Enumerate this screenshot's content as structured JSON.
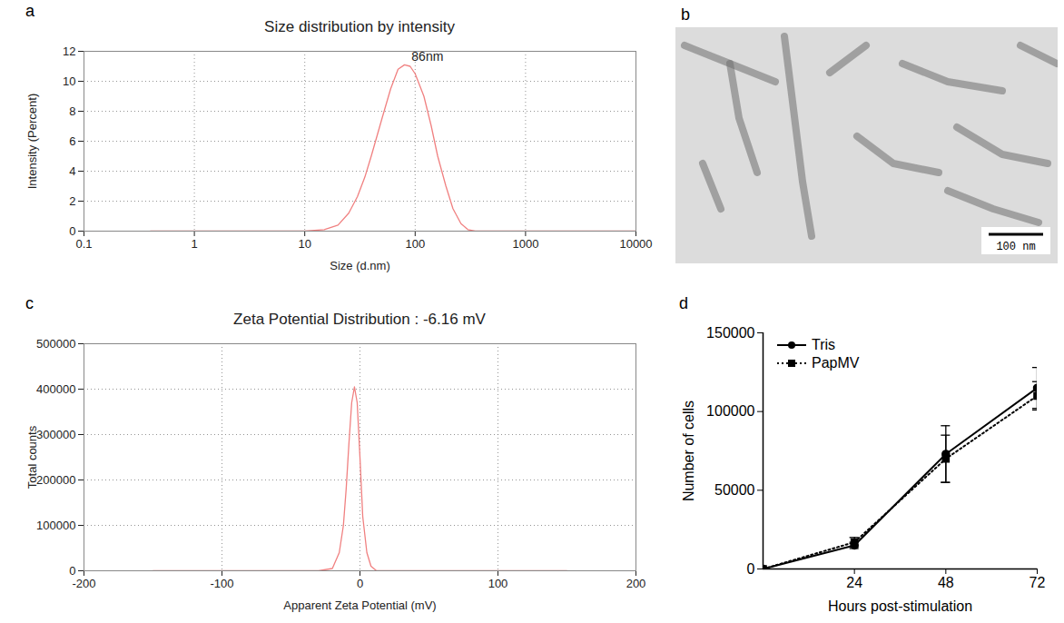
{
  "chart_data": [
    {
      "panel": "a",
      "type": "line",
      "title": "Size distribution by intensity",
      "x_label": "Size (d.nm)",
      "y_label": "Intensity (Percent)",
      "log": "x",
      "grid": true,
      "color": "#f08080",
      "x": [
        0.4,
        1,
        5,
        10,
        15,
        20,
        25,
        30,
        35,
        40,
        50,
        60,
        70,
        80,
        90,
        100,
        120,
        140,
        160,
        190,
        220,
        260,
        300,
        350,
        1000,
        10000
      ],
      "values": [
        0,
        0,
        0,
        0,
        0.1,
        0.4,
        1.2,
        2.3,
        3.6,
        5.0,
        7.5,
        9.5,
        10.8,
        11.1,
        11.0,
        10.5,
        9.0,
        7.0,
        5.0,
        3.0,
        1.5,
        0.5,
        0.1,
        0,
        0,
        0
      ],
      "xlim": [
        0.1,
        10000
      ],
      "xticks": [
        0.1,
        1,
        10,
        100,
        1000,
        10000
      ],
      "ylim": [
        0,
        12
      ],
      "yticks": [
        0,
        2,
        4,
        6,
        8,
        10,
        12
      ],
      "annotations": [
        {
          "text": "86nm",
          "x": 86,
          "y": 11.1
        }
      ]
    },
    {
      "panel": "b",
      "type": "image",
      "scale_bar": "100 nm"
    },
    {
      "panel": "c",
      "type": "line",
      "title": "Zeta Potential Distribution : -6.16 mV",
      "x_label": "Apparent Zeta Potential (mV)",
      "y_label": "Total counts",
      "grid": true,
      "color": "#f08080",
      "x": [
        -150,
        -30,
        -20,
        -15,
        -12,
        -10,
        -8,
        -6,
        -4,
        -2,
        0,
        2,
        5,
        8,
        12,
        150
      ],
      "values": [
        0,
        0,
        5000,
        40000,
        100000,
        180000,
        280000,
        370000,
        405000,
        370000,
        250000,
        120000,
        40000,
        10000,
        0,
        0
      ],
      "xlim": [
        -200,
        200
      ],
      "xticks": [
        -200,
        -100,
        0,
        100,
        200
      ],
      "ylim": [
        0,
        500000
      ],
      "yticks": [
        0,
        100000,
        200000,
        300000,
        400000,
        500000
      ]
    },
    {
      "panel": "d",
      "type": "line",
      "x_label": "Hours post-stimulation",
      "y_label": "Number of cells",
      "grid": false,
      "legend": "top-left",
      "x": [
        0,
        24,
        48,
        72
      ],
      "series": [
        {
          "name": "Tris",
          "color": "#000000",
          "marker": "circle",
          "line_style": "solid",
          "values": [
            0,
            15000,
            73000,
            115000
          ],
          "errors": [
            0,
            2000,
            18000,
            13000
          ]
        },
        {
          "name": "PapMV",
          "color": "#000000",
          "marker": "square",
          "line_style": "dotted",
          "values": [
            0,
            17000,
            70000,
            110000
          ],
          "errors": [
            0,
            3000,
            15000,
            9000
          ]
        }
      ],
      "xlim": [
        0,
        72
      ],
      "xticks": [
        24,
        48,
        72
      ],
      "ylim": [
        0,
        150000
      ],
      "yticks": [
        0,
        50000,
        100000,
        150000
      ]
    }
  ]
}
